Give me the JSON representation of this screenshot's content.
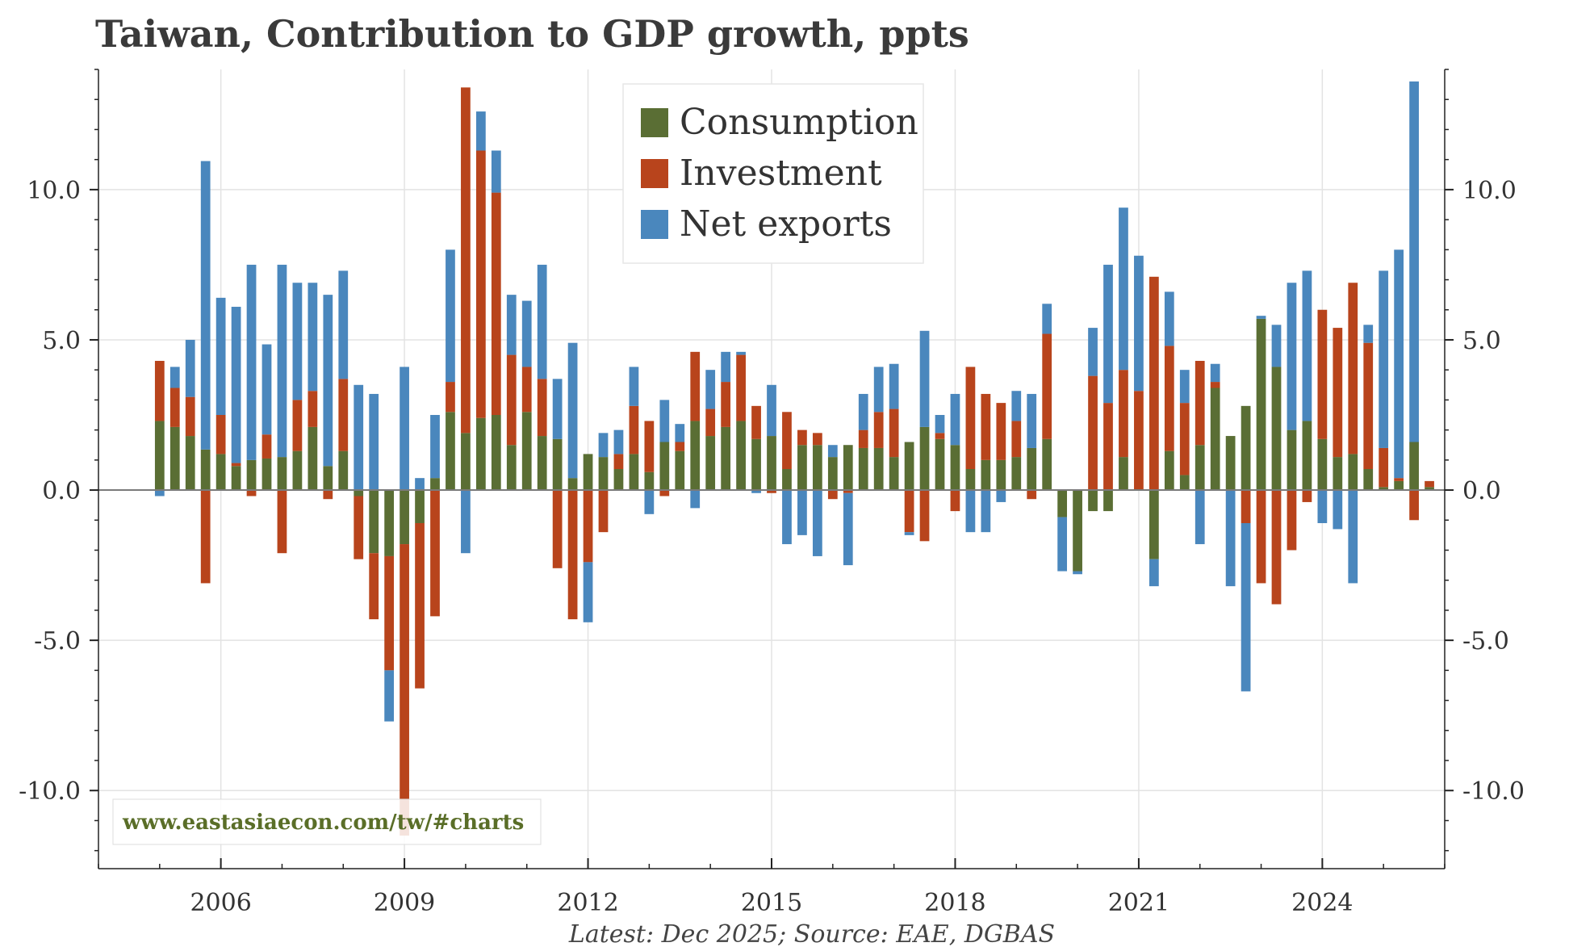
{
  "colors": {
    "consumption": "#5a6e34",
    "investment": "#b8441c",
    "net_exports": "#4a87bd",
    "watermark": "#5a6e28"
  },
  "chart_data": {
    "type": "bar",
    "stacked": true,
    "title": "Taiwan, Contribution to GDP growth, ppts",
    "xlabel": "",
    "ylabel": "",
    "ylim": [
      -12.6,
      14.0
    ],
    "xlim": [
      2004.0,
      2026.0
    ],
    "y_ticks": [
      -10.0,
      -5.0,
      0.0,
      5.0,
      10.0
    ],
    "y_tick_labels": [
      "-10.0",
      "-5.0",
      "0.0",
      "5.0",
      "10.0"
    ],
    "x_ticks": [
      2006,
      2009,
      2012,
      2015,
      2018,
      2021,
      2024
    ],
    "x_tick_labels": [
      "2006",
      "2009",
      "2012",
      "2015",
      "2018",
      "2021",
      "2024"
    ],
    "grid": true,
    "legend_position": "top-center",
    "x": [
      2005.0,
      2005.25,
      2005.5,
      2005.75,
      2006.0,
      2006.25,
      2006.5,
      2006.75,
      2007.0,
      2007.25,
      2007.5,
      2007.75,
      2008.0,
      2008.25,
      2008.5,
      2008.75,
      2009.0,
      2009.25,
      2009.5,
      2009.75,
      2010.0,
      2010.25,
      2010.5,
      2010.75,
      2011.0,
      2011.25,
      2011.5,
      2011.75,
      2012.0,
      2012.25,
      2012.5,
      2012.75,
      2013.0,
      2013.25,
      2013.5,
      2013.75,
      2014.0,
      2014.25,
      2014.5,
      2014.75,
      2015.0,
      2015.25,
      2015.5,
      2015.75,
      2016.0,
      2016.25,
      2016.5,
      2016.75,
      2017.0,
      2017.25,
      2017.5,
      2017.75,
      2018.0,
      2018.25,
      2018.5,
      2018.75,
      2019.0,
      2019.25,
      2019.5,
      2019.75,
      2020.0,
      2020.25,
      2020.5,
      2020.75,
      2021.0,
      2021.25,
      2021.5,
      2021.75,
      2022.0,
      2022.25,
      2022.5,
      2022.75,
      2023.0,
      2023.25,
      2023.5,
      2023.75,
      2024.0,
      2024.25,
      2024.5,
      2024.75,
      2025.0,
      2025.25,
      2025.5,
      2025.75
    ],
    "series": [
      {
        "name": "Consumption",
        "values": [
          2.3,
          2.1,
          1.8,
          1.35,
          1.2,
          0.8,
          1.0,
          1.05,
          1.1,
          1.3,
          2.1,
          0.8,
          1.3,
          -0.2,
          -2.1,
          -2.2,
          -1.8,
          -1.1,
          0.4,
          2.6,
          1.9,
          2.4,
          2.5,
          1.5,
          2.6,
          1.8,
          1.7,
          0.4,
          1.2,
          1.1,
          0.7,
          1.2,
          0.6,
          1.6,
          1.3,
          2.3,
          1.8,
          2.1,
          2.3,
          1.7,
          1.8,
          0.7,
          1.5,
          1.5,
          1.1,
          1.5,
          1.4,
          1.4,
          1.1,
          1.6,
          2.1,
          1.7,
          1.5,
          0.7,
          1.0,
          1.0,
          1.1,
          1.4,
          1.7,
          -0.9,
          -2.7,
          -0.7,
          -0.7,
          1.1,
          0.0,
          -2.3,
          1.3,
          0.5,
          1.5,
          3.4,
          1.8,
          2.8,
          5.7,
          4.1,
          2.0,
          2.3,
          1.7,
          1.1,
          1.2,
          0.7,
          0.1,
          0.3,
          1.6,
          0.1
        ]
      },
      {
        "name": "Investment",
        "values": [
          2.0,
          1.3,
          1.3,
          -3.1,
          1.3,
          0.1,
          -0.2,
          0.8,
          -2.1,
          1.7,
          1.2,
          -0.3,
          2.4,
          -2.1,
          -2.2,
          -3.8,
          -9.7,
          -5.5,
          -4.2,
          1.0,
          11.5,
          8.9,
          7.4,
          3.0,
          1.5,
          1.9,
          -2.6,
          -4.3,
          -2.4,
          -1.4,
          0.5,
          1.6,
          1.7,
          -0.2,
          0.3,
          2.3,
          0.9,
          1.5,
          2.2,
          1.1,
          -0.1,
          1.9,
          0.5,
          0.4,
          -0.3,
          -0.1,
          0.6,
          1.2,
          1.6,
          -1.4,
          -1.7,
          0.2,
          -0.7,
          3.4,
          2.2,
          1.9,
          1.2,
          -0.3,
          3.5,
          0.0,
          0.0,
          3.8,
          2.9,
          2.9,
          3.3,
          7.1,
          3.5,
          2.4,
          2.8,
          0.2,
          0.0,
          -1.1,
          -3.1,
          -3.8,
          -2.0,
          -0.4,
          4.3,
          4.3,
          5.7,
          4.2,
          1.3,
          0.1,
          -1.0,
          0.2
        ]
      },
      {
        "name": "Net exports",
        "values": [
          -0.2,
          0.7,
          1.9,
          9.6,
          3.9,
          5.2,
          6.5,
          3.0,
          6.4,
          3.9,
          3.6,
          5.7,
          3.6,
          3.5,
          3.2,
          -1.7,
          4.1,
          0.4,
          2.1,
          4.4,
          -2.1,
          1.3,
          1.4,
          2.0,
          2.2,
          3.8,
          2.0,
          4.5,
          -2.0,
          0.8,
          0.8,
          1.3,
          -0.8,
          1.4,
          0.6,
          -0.6,
          1.3,
          1.0,
          0.1,
          -0.1,
          1.7,
          -1.8,
          -1.5,
          -2.2,
          0.4,
          -2.4,
          1.2,
          1.5,
          1.5,
          -0.1,
          3.2,
          0.6,
          1.7,
          -1.4,
          -1.4,
          -0.4,
          1.0,
          1.8,
          1.0,
          -1.8,
          -0.1,
          1.6,
          4.6,
          5.4,
          4.5,
          -0.9,
          1.8,
          1.1,
          -1.8,
          0.6,
          -3.2,
          -5.6,
          0.1,
          1.4,
          4.9,
          5.0,
          -1.1,
          -1.3,
          -3.1,
          0.6,
          5.9,
          7.6,
          12.0,
          0.0
        ]
      }
    ]
  },
  "watermark": "www.eastasiaecon.com/tw/#charts",
  "source": "Latest: Dec 2025; Source: EAE, DGBAS"
}
